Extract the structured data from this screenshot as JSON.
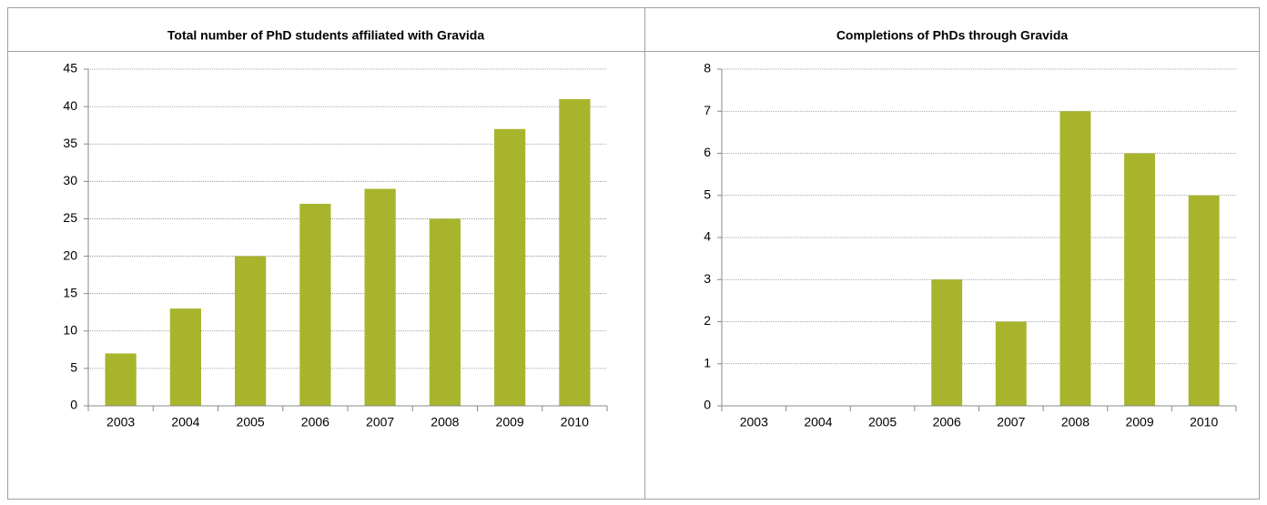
{
  "chart_data": [
    {
      "type": "bar",
      "title": "Total number of PhD students affiliated with Gravida",
      "categories": [
        "2003",
        "2004",
        "2005",
        "2006",
        "2007",
        "2008",
        "2009",
        "2010"
      ],
      "values": [
        7,
        13,
        20,
        27,
        29,
        25,
        37,
        41
      ],
      "color": "#a8b42c",
      "ylim": [
        0,
        45
      ],
      "yticks": [
        0,
        5,
        10,
        15,
        20,
        25,
        30,
        35,
        40,
        45
      ],
      "grid": true
    },
    {
      "type": "bar",
      "title": "Completions of PhDs through Gravida",
      "categories": [
        "2003",
        "2004",
        "2005",
        "2006",
        "2007",
        "2008",
        "2009",
        "2010"
      ],
      "values": [
        0,
        0,
        0,
        3,
        2,
        7,
        6,
        5
      ],
      "color": "#a8b42c",
      "ylim": [
        0,
        8
      ],
      "yticks": [
        0,
        1,
        2,
        3,
        4,
        5,
        6,
        7,
        8
      ],
      "grid": true
    }
  ]
}
